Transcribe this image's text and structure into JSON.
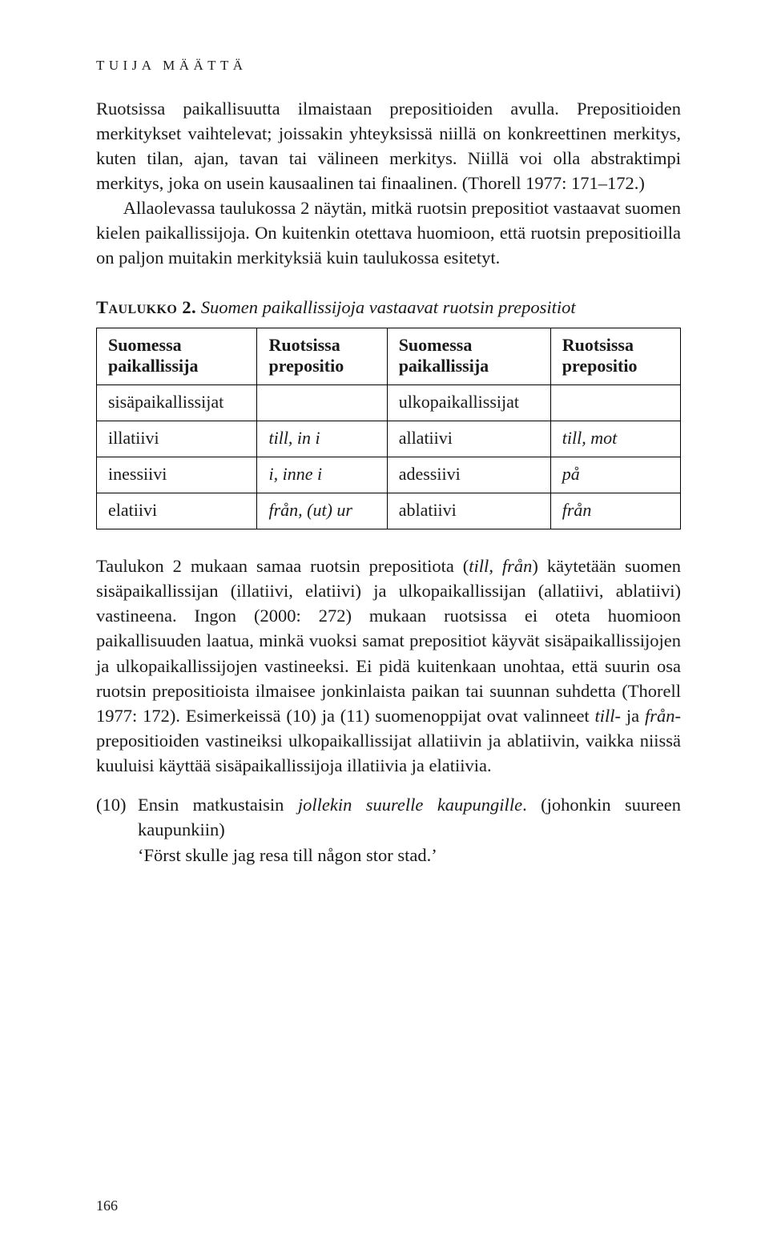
{
  "running_head": "TUIJA MÄÄTTÄ",
  "para1": "Ruotsissa paikallisuutta ilmaistaan prepositioiden avulla. Prepositioiden merkitykset vaihtelevat; joissakin yhteyksissä niillä on konkreettinen merkitys, kuten tilan, ajan, tavan tai välineen merkitys. Niillä voi olla abstraktimpi merkitys, joka on usein kausaalinen tai finaalinen. (Thorell 1977: 171–172.)",
  "para2": "Allaolevassa taulukossa 2 näytän, mitkä ruotsin prepositiot vastaavat suomen kielen paikallissijoja. On kuitenkin otettava huomioon, että ruotsin prepositioilla on paljon muitakin merkityksiä kuin taulukossa esitetyt.",
  "table_caption_lead": "Taulukko 2.",
  "table_caption_rest": " Suomen paikallissijoja vastaavat ruotsin prepositiot",
  "table": {
    "head": {
      "c1": "Suomessa paikallissija",
      "c2": "Ruotsissa prepositio",
      "c3": "Suomessa paikallissija",
      "c4": "Ruotsissa prepositio"
    },
    "rows": [
      {
        "c1": "sisäpaikallissijat",
        "c2": "",
        "c3": "ulkopaikallissijat",
        "c4": ""
      },
      {
        "c1": "illatiivi",
        "c2_it": "till, in i",
        "c3": "allatiivi",
        "c4_it": "till, mot"
      },
      {
        "c1": "inessiivi",
        "c2_it": "i, inne i",
        "c3": "adessiivi",
        "c4_it": "på"
      },
      {
        "c1": "elatiivi",
        "c2_it": "från, (ut) ur",
        "c3": "ablatiivi",
        "c4_it": "från"
      }
    ]
  },
  "para3_parts": {
    "a": "Taulukon 2 mukaan samaa ruotsin prepositiota (",
    "b_it": "till",
    "c": ", ",
    "d_it": "från",
    "e": ") käytetään suomen sisäpaikallissijan (illatiivi, elatiivi) ja ulkopaikallissijan (allatiivi, ablatiivi) vastineena. Ingon (2000: 272) mukaan ruotsissa ei oteta huomioon paikallisuuden laatua, minkä vuoksi samat prepositiot käyvät sisäpaikallissijojen ja ulkopaikallissijojen vastineeksi. Ei pidä kuitenkaan unohtaa, että suurin osa ruotsin prepositioista ilmaisee jonkinlaista paikan tai suunnan suhdetta (Thorell 1977: 172). Esimerkeissä (10) ja (11) suomenoppijat ovat valinneet ",
    "f_it": "till",
    "g": "- ja ",
    "h_it": "från",
    "i": "-prepositioiden vastineiksi ulkopaikallissijat allatiivin ja ablatiivin, vaikka niissä kuuluisi käyttää sisäpaikallissijoja illatiivia ja elatiivia."
  },
  "example": {
    "num": "(10)",
    "line1_a": "Ensin matkustaisin ",
    "line1_b_it": "jollekin suurelle kaupungille",
    "line1_c": ". (johonkin suureen kaupunkiin)",
    "line2": "‘Först skulle jag resa till någon stor stad.’"
  },
  "page_number": "166"
}
